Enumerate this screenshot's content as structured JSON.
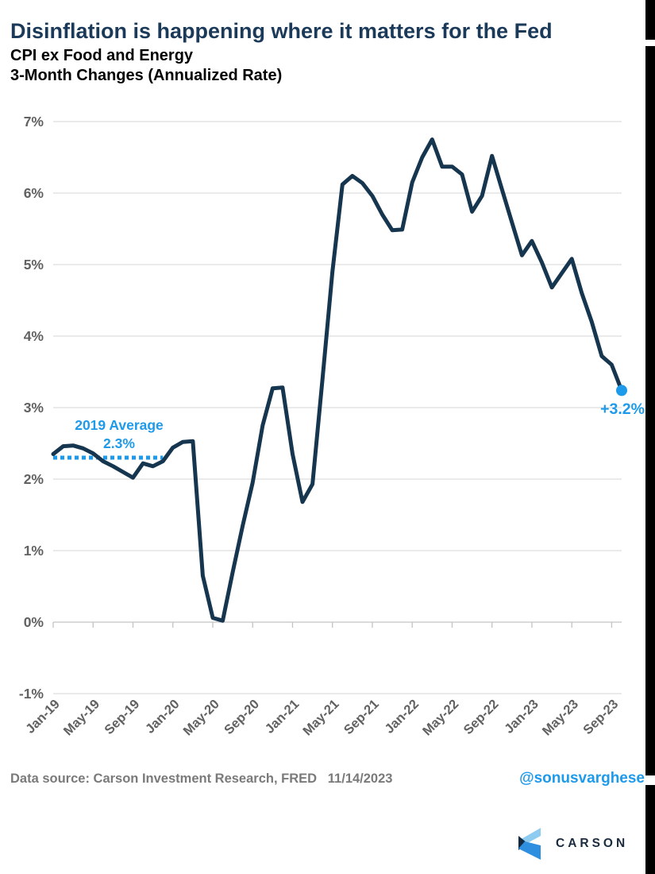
{
  "title": "Disinflation is happening where it matters for the Fed",
  "subtitle_line1": "CPI ex Food and Energy",
  "subtitle_line2": "3-Month Changes (Annualized Rate)",
  "footer": {
    "source": "Data source: Carson Investment Research, FRED   11/14/2023",
    "handle": "@sonusvarghese"
  },
  "logo": {
    "text": "CARSON"
  },
  "colors": {
    "title": "#1B3A5A",
    "line": "#16354F",
    "accent_blue": "#1E9AEA",
    "grid": "#DEDEDE",
    "zero_axis": "#C3C3C3",
    "axis_text": "#616161",
    "footer_text": "#7A7A7A",
    "logo_text": "#1B2B3E",
    "logo_light_blue": "#8ECBF0",
    "logo_mid_blue": "#2E8FE0",
    "logo_dark_navy": "#122A42"
  },
  "chart_data": {
    "type": "line",
    "x": [
      "Jan-19",
      "Feb-19",
      "Mar-19",
      "Apr-19",
      "May-19",
      "Jun-19",
      "Jul-19",
      "Aug-19",
      "Sep-19",
      "Oct-19",
      "Nov-19",
      "Dec-19",
      "Jan-20",
      "Feb-20",
      "Mar-20",
      "Apr-20",
      "May-20",
      "Jun-20",
      "Jul-20",
      "Aug-20",
      "Sep-20",
      "Oct-20",
      "Nov-20",
      "Dec-20",
      "Jan-21",
      "Feb-21",
      "Mar-21",
      "Apr-21",
      "May-21",
      "Jun-21",
      "Jul-21",
      "Aug-21",
      "Sep-21",
      "Oct-21",
      "Nov-21",
      "Dec-21",
      "Jan-22",
      "Feb-22",
      "Mar-22",
      "Apr-22",
      "May-22",
      "Jun-22",
      "Jul-22",
      "Aug-22",
      "Sep-22",
      "Oct-22",
      "Nov-22",
      "Dec-22",
      "Jan-23",
      "Feb-23",
      "Mar-23",
      "Apr-23",
      "May-23",
      "Jun-23",
      "Jul-23",
      "Aug-23",
      "Sep-23",
      "Oct-23"
    ],
    "series": [
      {
        "name": "CPI ex Food and Energy, 3-month annualized change",
        "values": [
          2.35,
          2.46,
          2.47,
          2.43,
          2.36,
          2.25,
          2.18,
          2.1,
          2.02,
          2.22,
          2.18,
          2.25,
          2.44,
          2.52,
          2.53,
          0.65,
          0.06,
          0.02,
          0.7,
          1.35,
          1.95,
          2.75,
          3.27,
          3.28,
          2.35,
          1.68,
          1.93,
          3.4,
          4.9,
          6.12,
          6.24,
          6.14,
          5.96,
          5.7,
          5.48,
          5.49,
          6.15,
          6.5,
          6.75,
          6.37,
          6.37,
          6.26,
          5.74,
          5.96,
          6.52,
          6.05,
          5.59,
          5.13,
          5.33,
          5.03,
          4.68,
          4.88,
          5.08,
          4.6,
          4.2,
          3.72,
          3.6,
          3.24
        ]
      }
    ],
    "ylim": [
      -1,
      7
    ],
    "yticks": [
      7,
      6,
      5,
      4,
      3,
      2,
      1,
      0,
      -1
    ],
    "ytick_labels": [
      "7%",
      "6%",
      "5%",
      "4%",
      "3%",
      "2%",
      "1%",
      "0%",
      "-1%"
    ],
    "xtick_every": 4,
    "xtick_labels": [
      "Jan-19",
      "May-19",
      "Sep-19",
      "Jan-20",
      "May-20",
      "Sep-20",
      "Jan-21",
      "May-21",
      "Sep-21",
      "Jan-22",
      "May-22",
      "Sep-22",
      "Jan-23",
      "May-23",
      "Sep-23"
    ],
    "grid": true,
    "legend": "none",
    "annotations": {
      "average_label_line1": "2019 Average",
      "average_label_line2": "2.3%",
      "average_value": 2.3,
      "average_span_months": 12,
      "last_point_label": "+3.2%",
      "last_point_value": 3.24
    }
  }
}
